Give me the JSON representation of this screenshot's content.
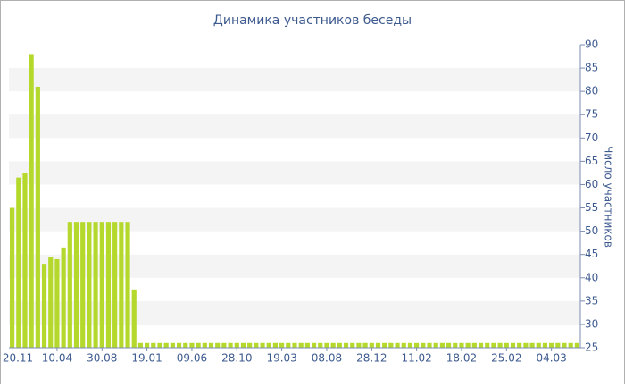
{
  "chart_data": {
    "type": "bar",
    "title": "Динамика участников беседы",
    "y_label": "Число участников",
    "categories": [
      "20.11",
      null,
      null,
      null,
      null,
      null,
      null,
      "10.04",
      null,
      null,
      null,
      null,
      null,
      null,
      "30.08",
      null,
      null,
      null,
      null,
      null,
      null,
      "19.01",
      null,
      null,
      null,
      null,
      null,
      null,
      "09.06",
      null,
      null,
      null,
      null,
      null,
      null,
      "28.10",
      null,
      null,
      null,
      null,
      null,
      null,
      "19.03",
      null,
      null,
      null,
      null,
      null,
      null,
      "08.08",
      null,
      null,
      null,
      null,
      null,
      null,
      "28.12",
      null,
      null,
      null,
      null,
      null,
      null,
      "11.02",
      null,
      null,
      null,
      null,
      null,
      null,
      "18.02",
      null,
      null,
      null,
      null,
      null,
      null,
      "25.02",
      null,
      null,
      null,
      null,
      null,
      null,
      "04.03",
      null,
      null,
      null,
      null
    ],
    "values": [
      55,
      61.5,
      62.5,
      88,
      81,
      43,
      44.5,
      44,
      46.5,
      52,
      52,
      52,
      52,
      52,
      52,
      52,
      52,
      52,
      52,
      37.5,
      26,
      26,
      26,
      26,
      26,
      26,
      26,
      26,
      26,
      26,
      26,
      26,
      26,
      26,
      26,
      26,
      26,
      26,
      26,
      26,
      26,
      26,
      26,
      26,
      26,
      26,
      26,
      26,
      26,
      26,
      26,
      26,
      26,
      26,
      26,
      26,
      26,
      26,
      26,
      26,
      26,
      26,
      26,
      26,
      26,
      26,
      26,
      26,
      26,
      26,
      26,
      26,
      26,
      26,
      26,
      26,
      26,
      26,
      26,
      26,
      26,
      26,
      26,
      26,
      26,
      26,
      26,
      26,
      26
    ],
    "color": "#b5d82c",
    "ylim": [
      25,
      90
    ],
    "yticks": [
      25,
      30,
      35,
      40,
      45,
      50,
      55,
      60,
      65,
      70,
      75,
      80,
      85,
      90
    ],
    "y_axis_side": "right",
    "grid": "bands"
  }
}
